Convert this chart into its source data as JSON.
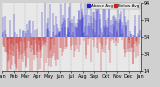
{
  "plot_bg_color": "#e8e8e8",
  "fig_bg_color": "#d0d0d0",
  "bar_color_above": "#2222cc",
  "bar_color_below": "#cc2222",
  "legend_label_above": "Above Avg",
  "legend_label_below": "Below Avg",
  "legend_color_above": "#2222cc",
  "legend_color_below": "#cc2222",
  "ylim": [
    14,
    94
  ],
  "ytick_vals": [
    14,
    34,
    54,
    74,
    94
  ],
  "ytick_labels": [
    "14",
    "34",
    "54",
    "74",
    "94"
  ],
  "num_points": 365,
  "seed": 42,
  "avg_humidity": 54,
  "amplitude": 12,
  "noise_scale": 20,
  "grid_color": "#aaaaaa",
  "tick_fontsize": 3.5,
  "legend_fontsize": 3.0,
  "num_months": 13,
  "month_labels": [
    "Jan",
    "Feb",
    "Mar",
    "Apr",
    "May",
    "Jun",
    "Jul",
    "Aug",
    "Sep",
    "Oct",
    "Nov",
    "Dec",
    "Jan"
  ]
}
